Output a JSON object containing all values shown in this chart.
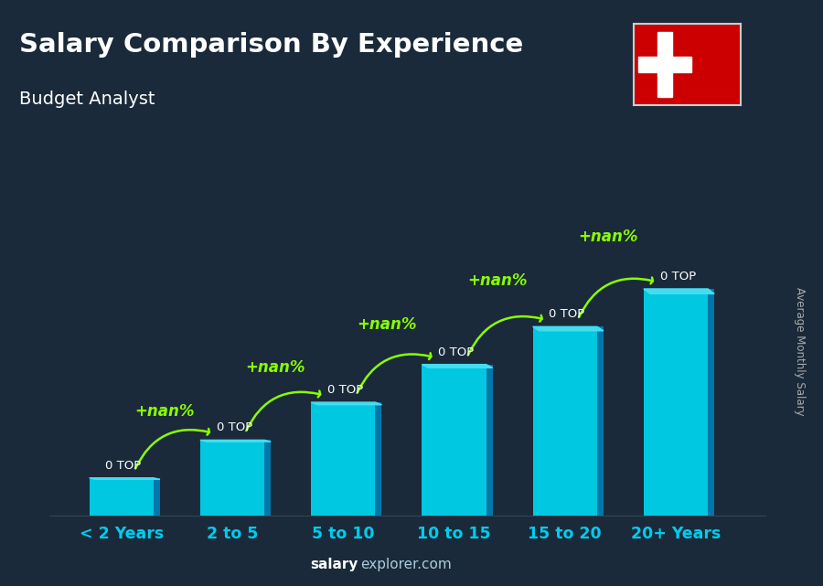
{
  "title": "Salary Comparison By Experience",
  "subtitle": "Budget Analyst",
  "ylabel": "Average Monthly Salary",
  "footer_bold": "salary",
  "footer_light": "explorer.com",
  "categories": [
    "< 2 Years",
    "2 to 5",
    "5 to 10",
    "10 to 15",
    "15 to 20",
    "20+ Years"
  ],
  "values": [
    1,
    2,
    3,
    4,
    5,
    6
  ],
  "bar_label": "0 TOP",
  "pct_label": "+nan%",
  "bar_color_face": "#00c8e0",
  "bar_color_right": "#0077aa",
  "bar_color_top": "#44ddf0",
  "bar_color_dark": "#008ab0",
  "bg_color": "#1a2a3a",
  "bg_color2": "#243545",
  "title_color": "#ffffff",
  "subtitle_color": "#ffffff",
  "annotation_color": "#88ff00",
  "annotation_value_color": "#ffffff",
  "arrow_color": "#88ff00",
  "xlabel_color": "#00ccee",
  "flag_red": "#cc0000",
  "flag_cross_color": "#ffffff",
  "footer_bold_color": "#ffffff",
  "footer_light_color": "#aaccdd",
  "ylabel_color": "#aaaaaa"
}
